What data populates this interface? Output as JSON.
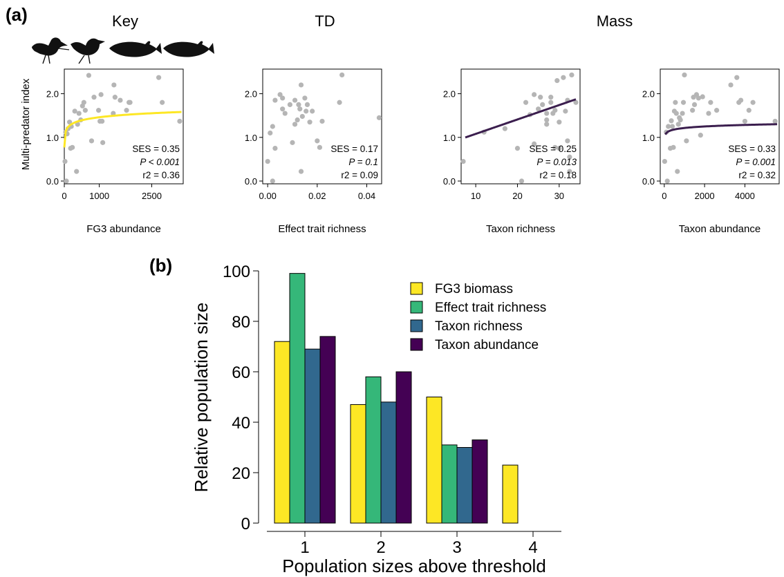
{
  "panel_labels": {
    "a": "(a)",
    "b": "(b)"
  },
  "group_titles": [
    "Key",
    "TD",
    "Mass"
  ],
  "silhouettes": [
    "bird-icon",
    "bird-icon",
    "fish-icon",
    "fish-icon"
  ],
  "chart_data": [
    {
      "type": "scatter",
      "panel": "a",
      "xlabel": "FG3 abundance",
      "ylabel": "Multi-predator index",
      "xlim": [
        0,
        3400
      ],
      "ylim": [
        0,
        2.5
      ],
      "xticks": [
        0,
        1000,
        2500
      ],
      "xtick_labels": [
        "0",
        "1000",
        "2500"
      ],
      "yticks": [
        0,
        1,
        2
      ],
      "ytick_labels": [
        "0.0",
        "1.0",
        "2.0"
      ],
      "fit": {
        "kind": "log",
        "color": "#fde725",
        "x_start": 0,
        "x_end": 3350,
        "a": 0.77,
        "b": 0.1
      },
      "stats": {
        "ses": "SES = 0.35",
        "p": "P < 0.001",
        "r2": "r2 = 0.36"
      },
      "points": [
        [
          20,
          0.45
        ],
        [
          60,
          0
        ],
        [
          40,
          1.12
        ],
        [
          80,
          1.08
        ],
        [
          110,
          1.2
        ],
        [
          150,
          1.35
        ],
        [
          180,
          0.75
        ],
        [
          200,
          1.25
        ],
        [
          230,
          0.77
        ],
        [
          300,
          1.6
        ],
        [
          350,
          0.22
        ],
        [
          380,
          1.3
        ],
        [
          420,
          1.55
        ],
        [
          470,
          1.4
        ],
        [
          520,
          1.72
        ],
        [
          560,
          1.8
        ],
        [
          600,
          1.62
        ],
        [
          700,
          2.42
        ],
        [
          780,
          0.92
        ],
        [
          850,
          1.92
        ],
        [
          980,
          1.62
        ],
        [
          1050,
          1.98
        ],
        [
          1100,
          0.88
        ],
        [
          1020,
          1.37
        ],
        [
          1080,
          1.37
        ],
        [
          1400,
          1.55
        ],
        [
          1420,
          2.2
        ],
        [
          1450,
          1.92
        ],
        [
          1600,
          1.85
        ],
        [
          1780,
          1.62
        ],
        [
          1850,
          1.8
        ],
        [
          1880,
          1.8
        ],
        [
          2700,
          2.37
        ],
        [
          2800,
          1.8
        ],
        [
          3300,
          1.37
        ]
      ]
    },
    {
      "type": "scatter",
      "panel": "a",
      "xlabel": "Effect trait richness",
      "ylabel": "",
      "xlim": [
        -0.002,
        0.046
      ],
      "ylim": [
        0,
        2.5
      ],
      "xticks": [
        0,
        0.02,
        0.04
      ],
      "xtick_labels": [
        "0.00",
        "0.02",
        "0.04"
      ],
      "yticks": [
        0,
        1,
        2
      ],
      "ytick_labels": [
        "0.0",
        "1.0",
        "2.0"
      ],
      "fit": null,
      "stats": {
        "ses": "SES = 0.17",
        "p": "P = 0.1",
        "r2": "r2 = 0.09"
      },
      "points": [
        [
          0,
          0.45
        ],
        [
          0.001,
          1.1
        ],
        [
          0.002,
          1.25
        ],
        [
          0.003,
          0.75
        ],
        [
          0.003,
          1.85
        ],
        [
          0.002,
          0
        ],
        [
          0.005,
          1.98
        ],
        [
          0.006,
          1.65
        ],
        [
          0.007,
          1.55
        ],
        [
          0.006,
          1.9
        ],
        [
          0.009,
          1.75
        ],
        [
          0.01,
          0.88
        ],
        [
          0.011,
          1.3
        ],
        [
          0.011,
          1.85
        ],
        [
          0.012,
          1.4
        ],
        [
          0.0125,
          1.75
        ],
        [
          0.013,
          1.65
        ],
        [
          0.0135,
          0.22
        ],
        [
          0.0135,
          2.2
        ],
        [
          0.014,
          1.48
        ],
        [
          0.015,
          1.9
        ],
        [
          0.0155,
          1.6
        ],
        [
          0.016,
          1.75
        ],
        [
          0.017,
          1.35
        ],
        [
          0.018,
          1.6
        ],
        [
          0.02,
          0.92
        ],
        [
          0.021,
          0.77
        ],
        [
          0.022,
          1.37
        ],
        [
          0.029,
          1.8
        ],
        [
          0.03,
          2.43
        ],
        [
          0.045,
          1.45
        ]
      ]
    },
    {
      "type": "scatter",
      "panel": "a",
      "xlabel": "Taxon richness",
      "ylabel": "",
      "xlim": [
        6.5,
        35
      ],
      "ylim": [
        0,
        2.5
      ],
      "xticks": [
        10,
        20,
        30
      ],
      "xtick_labels": [
        "10",
        "20",
        "30"
      ],
      "yticks": [
        0,
        1,
        2
      ],
      "ytick_labels": [
        "0.0",
        "1.0",
        "2.0"
      ],
      "fit": {
        "kind": "linear",
        "color": "#3b1e4e",
        "x_start": 7.5,
        "x_end": 34,
        "slope": 0.033,
        "intercept": 0.75
      },
      "stats": {
        "ses": "SES = 0.25",
        "p": "P = 0.013",
        "r2": "r2 = 0.18"
      },
      "points": [
        [
          7,
          0.45
        ],
        [
          12,
          1.12
        ],
        [
          17,
          1.2
        ],
        [
          20,
          0.75
        ],
        [
          21,
          0
        ],
        [
          22,
          1.8
        ],
        [
          23,
          1.52
        ],
        [
          24,
          0.85
        ],
        [
          24,
          1.98
        ],
        [
          25,
          1.65
        ],
        [
          25.5,
          1.92
        ],
        [
          26,
          1.75
        ],
        [
          27,
          1.55
        ],
        [
          27,
          1.3
        ],
        [
          27,
          1.4
        ],
        [
          28,
          1.92
        ],
        [
          28,
          1.8
        ],
        [
          28.5,
          1.55
        ],
        [
          29,
          0.77
        ],
        [
          29,
          1.62
        ],
        [
          29.5,
          2.3
        ],
        [
          30,
          0.75
        ],
        [
          30,
          1.35
        ],
        [
          31,
          2.37
        ],
        [
          31.5,
          1.6
        ],
        [
          32,
          1.85
        ],
        [
          32,
          0.92
        ],
        [
          32.5,
          0.55
        ],
        [
          32.5,
          0.22
        ],
        [
          33,
          2.43
        ],
        [
          34,
          1.8
        ]
      ]
    },
    {
      "type": "scatter",
      "panel": "a",
      "xlabel": "Taxon abundance",
      "ylabel": "",
      "xlim": [
        -200,
        5700
      ],
      "ylim": [
        0,
        2.5
      ],
      "xticks": [
        0,
        2000,
        4000
      ],
      "xtick_labels": [
        "0",
        "2000",
        "4000"
      ],
      "yticks": [
        0,
        1,
        2
      ],
      "ytick_labels": [
        "0.0",
        "1.0",
        "2.0"
      ],
      "fit": {
        "kind": "log",
        "color": "#3b1e4e",
        "x_start": 50,
        "x_end": 5600,
        "a": 0.87,
        "b": 0.05
      },
      "stats": {
        "ses": "SES = 0.33",
        "p": "P = 0.001",
        "r2": "r2 = 0.32"
      },
      "points": [
        [
          20,
          0.45
        ],
        [
          150,
          0
        ],
        [
          100,
          1.12
        ],
        [
          200,
          1.25
        ],
        [
          300,
          0.75
        ],
        [
          350,
          1.38
        ],
        [
          400,
          1.25
        ],
        [
          450,
          0.77
        ],
        [
          500,
          1.6
        ],
        [
          550,
          1.8
        ],
        [
          600,
          1.55
        ],
        [
          650,
          0.22
        ],
        [
          700,
          1.3
        ],
        [
          750,
          1.45
        ],
        [
          800,
          1.4
        ],
        [
          900,
          1.55
        ],
        [
          950,
          1.8
        ],
        [
          1000,
          2.43
        ],
        [
          1100,
          0.92
        ],
        [
          1400,
          1.62
        ],
        [
          1450,
          1.92
        ],
        [
          1500,
          1.75
        ],
        [
          1600,
          1.98
        ],
        [
          1700,
          1.9
        ],
        [
          1800,
          1.05
        ],
        [
          1900,
          1.93
        ],
        [
          2200,
          1.55
        ],
        [
          2300,
          1.8
        ],
        [
          2600,
          1.62
        ],
        [
          3300,
          2.2
        ],
        [
          3600,
          2.37
        ],
        [
          3700,
          1.8
        ],
        [
          3800,
          1.85
        ],
        [
          4000,
          1.37
        ],
        [
          4200,
          1.62
        ],
        [
          4400,
          1.8
        ],
        [
          5500,
          1.37
        ]
      ]
    },
    {
      "type": "bar",
      "panel": "b",
      "title": "",
      "xlabel": "Population sizes above threshold",
      "ylabel": "Relative population size",
      "categories": [
        "1",
        "2",
        "3",
        "4"
      ],
      "ylim": [
        0,
        100
      ],
      "yticks": [
        0,
        20,
        40,
        60,
        80,
        100
      ],
      "ytick_labels": [
        "0",
        "20",
        "40",
        "60",
        "80",
        "100"
      ],
      "grid": false,
      "legend_position": "top-right",
      "series": [
        {
          "name": "FG3 biomass",
          "color": "#fde725",
          "values": [
            72,
            47,
            50,
            23
          ]
        },
        {
          "name": "Effect trait richness",
          "color": "#35b779",
          "values": [
            99,
            58,
            31,
            0
          ]
        },
        {
          "name": "Taxon richness",
          "color": "#31688e",
          "values": [
            69,
            48,
            30,
            0
          ]
        },
        {
          "name": "Taxon abundance",
          "color": "#440154",
          "values": [
            74,
            60,
            33,
            0
          ]
        }
      ]
    }
  ]
}
